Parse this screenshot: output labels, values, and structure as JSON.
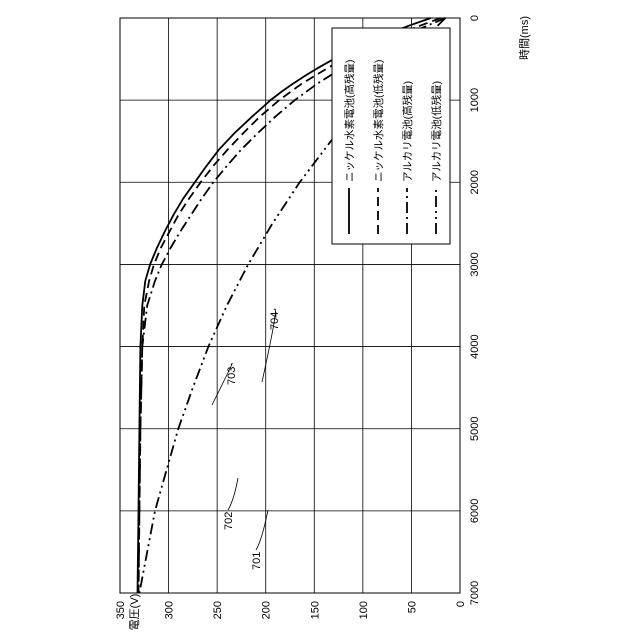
{
  "chart_data": {
    "type": "line",
    "orientation": "rotated-90-clockwise",
    "xlabel": "時間(ms)",
    "ylabel": "電圧(V)",
    "xlim": [
      0,
      7000
    ],
    "ylim": [
      0,
      350
    ],
    "x_ticks": [
      "0",
      "1000",
      "2000",
      "3000",
      "4000",
      "5000",
      "6000",
      "7000"
    ],
    "y_ticks": [
      "0",
      "50",
      "100",
      "150",
      "200",
      "250",
      "300",
      "350"
    ],
    "grid": true,
    "legend_position": "upper-right",
    "series": [
      {
        "name": "ニッケル水素電池(高残量)",
        "ref": "701",
        "style": "solid",
        "color": "#000000",
        "x": [
          0,
          100,
          200,
          300,
          400,
          500,
          600,
          700,
          800,
          900,
          1000,
          1200,
          1400,
          1600,
          1800,
          2000,
          2200,
          2400,
          2600,
          2800,
          3000,
          3200,
          3500,
          4000,
          5000,
          6000,
          7000
        ],
        "y": [
          30,
          54,
          75,
          95,
          113,
          130,
          145,
          159,
          172,
          184,
          195,
          214,
          232,
          248,
          261,
          273,
          285,
          295,
          304,
          312,
          319,
          324,
          327,
          329,
          330,
          331,
          332
        ]
      },
      {
        "name": "ニッケル水素電池(低残量)",
        "ref": "702",
        "style": "dashed",
        "color": "#000000",
        "x": [
          0,
          200,
          400,
          600,
          800,
          1000,
          1200,
          1400,
          1600,
          1800,
          2000,
          2200,
          2400,
          2600,
          2800,
          3000,
          3200,
          3500,
          4000,
          5000,
          6000,
          7000
        ],
        "y": [
          20,
          65,
          103,
          135,
          163,
          186,
          206,
          223,
          239,
          254,
          267,
          279,
          290,
          299,
          308,
          315,
          320,
          325,
          327,
          329,
          330,
          331
        ]
      },
      {
        "name": "アルカリ電池(高残量)",
        "ref": "703",
        "style": "dash-dot",
        "color": "#000000",
        "x": [
          0,
          200,
          400,
          600,
          800,
          1000,
          1200,
          1400,
          1600,
          1800,
          2000,
          2200,
          2400,
          2600,
          2800,
          3000,
          3200,
          3500,
          4000,
          5000,
          6000,
          7000
        ],
        "y": [
          15,
          55,
          90,
          120,
          147,
          170,
          190,
          208,
          225,
          240,
          254,
          266,
          277,
          288,
          298,
          307,
          314,
          322,
          327,
          329,
          330,
          331
        ]
      },
      {
        "name": "アルカリ電池(低残量)",
        "ref": "704",
        "style": "dash-dot-dot",
        "color": "#000000",
        "x": [
          0,
          500,
          1000,
          1500,
          2000,
          2500,
          3000,
          3500,
          4000,
          4500,
          5000,
          5500,
          6000,
          6500,
          7000
        ],
        "y": [
          15,
          58,
          98,
          133,
          165,
          193,
          218,
          240,
          259,
          275,
          290,
          302,
          314,
          322,
          330
        ]
      }
    ],
    "reference_labels": [
      "701",
      "702",
      "703",
      "704"
    ]
  }
}
